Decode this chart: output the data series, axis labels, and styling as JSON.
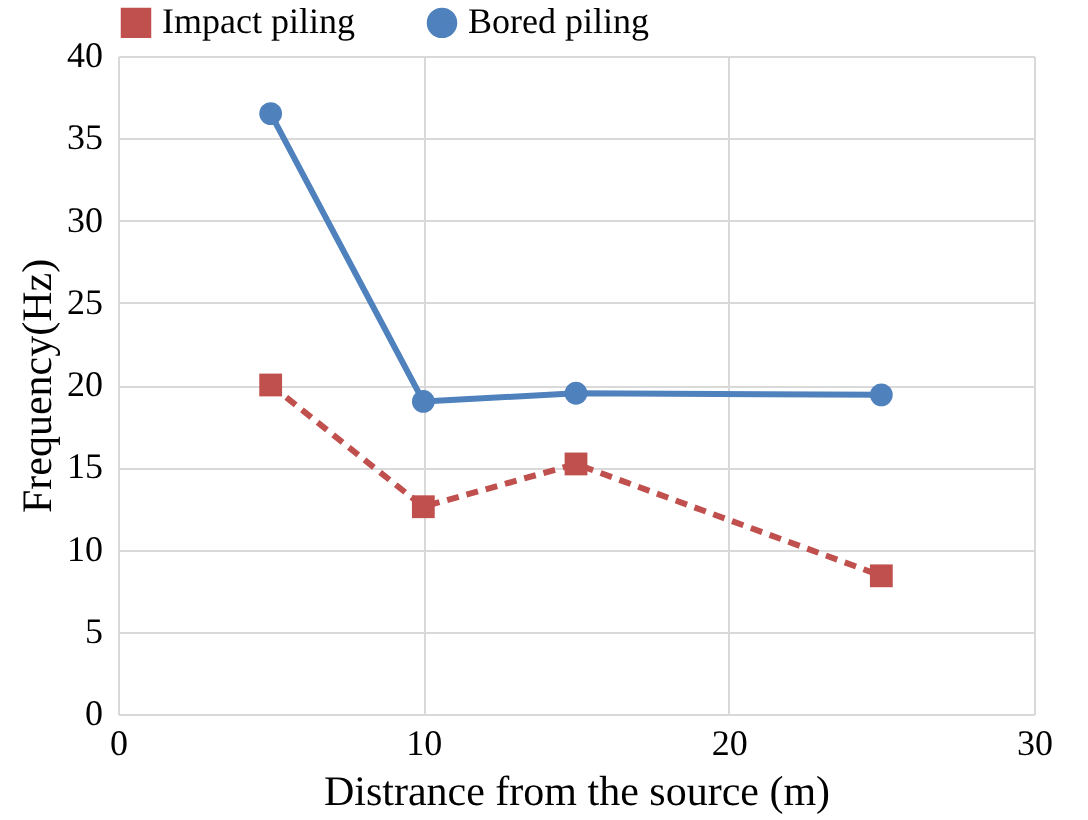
{
  "chart_data": {
    "type": "line",
    "xlabel": "Distrance from the source (m)",
    "ylabel": "Frequency(Hz)",
    "xlim": [
      0,
      30
    ],
    "xticks": [
      0,
      10,
      20,
      30
    ],
    "ylim": [
      0,
      40
    ],
    "yticks": [
      0,
      5,
      10,
      15,
      20,
      25,
      30,
      35,
      40
    ],
    "grid": true,
    "legend": "top",
    "series": [
      {
        "name": "Impact piling",
        "color": "#c0504d",
        "marker": "square",
        "line_style": "dashed",
        "x": [
          5,
          10,
          15,
          25
        ],
        "values": [
          20,
          12.6,
          15.2,
          8.4
        ]
      },
      {
        "name": "Bored piling",
        "color": "#4f81bd",
        "marker": "circle",
        "line_style": "solid",
        "x": [
          5,
          10,
          15,
          25
        ],
        "values": [
          36.5,
          19,
          19.5,
          19.4
        ]
      }
    ]
  }
}
